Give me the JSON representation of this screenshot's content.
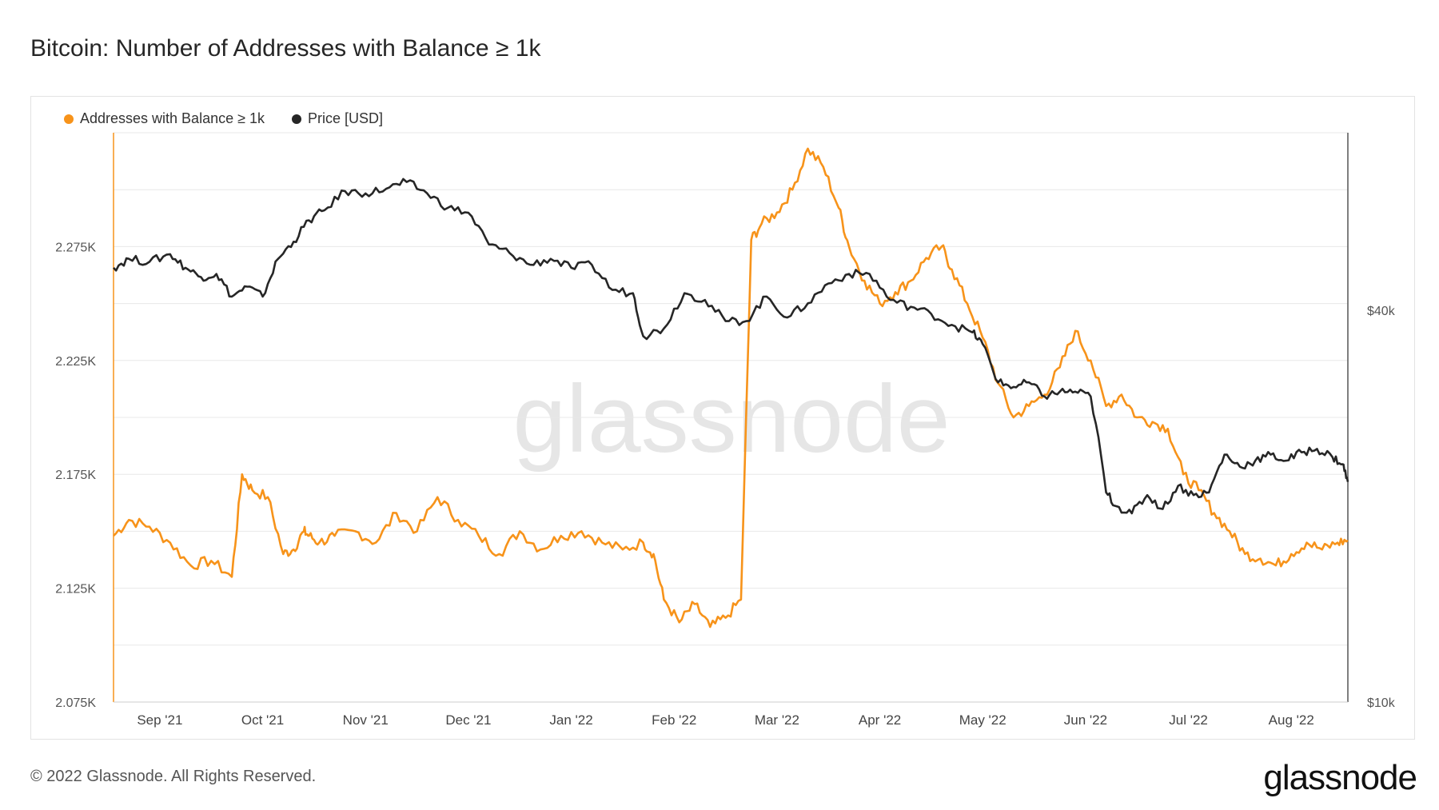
{
  "title": "Bitcoin: Number of Addresses with Balance ≥ 1k",
  "footer": "© 2022 Glassnode. All Rights Reserved.",
  "brand": "glassnode",
  "watermark": "glassnode",
  "colors": {
    "addresses": "#f7931a",
    "price": "#262626",
    "grid": "#e8e8e8",
    "axis_text": "#555555"
  },
  "chart_data": {
    "type": "line",
    "title": "Bitcoin: Number of Addresses with Balance ≥ 1k",
    "legend": [
      "Addresses with Balance ≥ 1k",
      "Price [USD]"
    ],
    "x_tick_labels": [
      "Sep '21",
      "Oct '21",
      "Nov '21",
      "Dec '21",
      "Jan '22",
      "Feb '22",
      "Mar '22",
      "Apr '22",
      "May '22",
      "Jun '22",
      "Jul '22",
      "Aug '22"
    ],
    "x_tick_positions": [
      0.3,
      1.3,
      2.3,
      3.3,
      4.3,
      5.3,
      6.3,
      7.3,
      8.3,
      9.3,
      10.3,
      11.3
    ],
    "xlim": [
      -0.15,
      11.85
    ],
    "y_left": {
      "label": "",
      "ticks": [
        2075,
        2125,
        2175,
        2225,
        2275
      ],
      "tick_labels": [
        "2.075K",
        "2.125K",
        "2.175K",
        "2.225K",
        "2.275K"
      ],
      "lim": [
        2075,
        2325
      ]
    },
    "y_right": {
      "label": "",
      "scale": "log",
      "ticks": [
        10000,
        40000
      ],
      "tick_labels": [
        "$10k",
        "$40k"
      ],
      "lim": [
        10000,
        75000
      ]
    },
    "series": [
      {
        "name": "Addresses with Balance ≥ 1k",
        "axis": "left",
        "x": [
          -0.15,
          0.0,
          0.2,
          0.4,
          0.6,
          0.8,
          1.0,
          1.1,
          1.2,
          1.35,
          1.5,
          1.6,
          1.7,
          1.75,
          1.85,
          2.0,
          2.2,
          2.4,
          2.6,
          2.8,
          3.0,
          3.2,
          3.4,
          3.6,
          3.8,
          4.0,
          4.2,
          4.4,
          4.6,
          4.8,
          5.0,
          5.1,
          5.2,
          5.35,
          5.5,
          5.65,
          5.8,
          5.95,
          6.05,
          6.15,
          6.3,
          6.45,
          6.6,
          6.75,
          6.9,
          7.0,
          7.15,
          7.3,
          7.45,
          7.6,
          7.75,
          7.9,
          8.0,
          8.15,
          8.3,
          8.45,
          8.6,
          8.75,
          8.9,
          9.05,
          9.2,
          9.35,
          9.5,
          9.65,
          9.8,
          9.95,
          10.1,
          10.25,
          10.4,
          10.55,
          10.7,
          10.85,
          11.0,
          11.15,
          11.3,
          11.45,
          11.6,
          11.75,
          11.85
        ],
        "values": [
          2148,
          2155,
          2152,
          2145,
          2135,
          2137,
          2130,
          2175,
          2168,
          2165,
          2140,
          2142,
          2150,
          2148,
          2145,
          2148,
          2150,
          2145,
          2158,
          2150,
          2165,
          2155,
          2148,
          2140,
          2150,
          2142,
          2148,
          2150,
          2145,
          2142,
          2145,
          2140,
          2120,
          2110,
          2118,
          2108,
          2112,
          2120,
          2278,
          2285,
          2290,
          2300,
          2318,
          2310,
          2292,
          2275,
          2260,
          2250,
          2255,
          2260,
          2270,
          2275,
          2265,
          2250,
          2235,
          2215,
          2200,
          2205,
          2210,
          2222,
          2238,
          2225,
          2205,
          2210,
          2200,
          2198,
          2195,
          2175,
          2168,
          2158,
          2150,
          2140,
          2138,
          2135,
          2140,
          2145,
          2142,
          2145,
          2146
        ]
      },
      {
        "name": "Price [USD]",
        "axis": "right",
        "x": [
          -0.15,
          0.0,
          0.2,
          0.4,
          0.55,
          0.7,
          0.85,
          1.0,
          1.15,
          1.3,
          1.45,
          1.6,
          1.75,
          1.9,
          2.1,
          2.3,
          2.5,
          2.7,
          2.9,
          3.1,
          3.3,
          3.5,
          3.7,
          3.9,
          4.1,
          4.3,
          4.5,
          4.7,
          4.9,
          5.0,
          5.2,
          5.4,
          5.6,
          5.8,
          6.0,
          6.2,
          6.4,
          6.6,
          6.8,
          7.0,
          7.2,
          7.4,
          7.6,
          7.8,
          8.0,
          8.2,
          8.3,
          8.45,
          8.6,
          8.75,
          8.9,
          9.05,
          9.2,
          9.35,
          9.5,
          9.6,
          9.75,
          9.9,
          10.05,
          10.2,
          10.35,
          10.5,
          10.65,
          10.8,
          10.95,
          11.1,
          11.25,
          11.4,
          11.55,
          11.7,
          11.8,
          11.85
        ],
        "values": [
          46500,
          48000,
          47500,
          48800,
          46500,
          45000,
          45500,
          42000,
          43500,
          42000,
          48000,
          51000,
          55000,
          57000,
          61000,
          60500,
          61500,
          63000,
          60500,
          57500,
          56500,
          50500,
          49000,
          47000,
          48000,
          46500,
          47000,
          43000,
          42500,
          36500,
          37500,
          42500,
          41500,
          38500,
          38500,
          42000,
          39000,
          41000,
          44000,
          45500,
          45500,
          41500,
          40500,
          39500,
          38000,
          37000,
          35500,
          31000,
          30500,
          31000,
          29500,
          30000,
          30000,
          29500,
          21000,
          20000,
          19500,
          20800,
          19800,
          21500,
          20800,
          21000,
          24000,
          23000,
          23500,
          24000,
          23500,
          24200,
          24500,
          23800,
          23200,
          21800
        ]
      }
    ]
  }
}
